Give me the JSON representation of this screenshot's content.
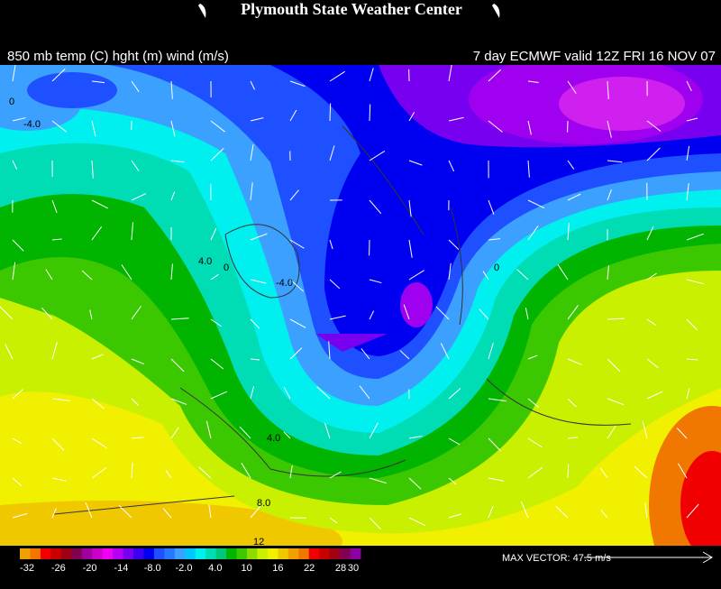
{
  "header": {
    "title": "Plymouth State Weather Center"
  },
  "subtitle_left": "850 mb temp (C) hght (m) wind (m/s)",
  "subtitle_right": "7 day ECMWF valid 12Z FRI 16 NOV 07",
  "contour_labels": [
    "0",
    "-4.0",
    "4.0",
    "0",
    "-4.0",
    "0",
    "4.0",
    "8.0",
    "12"
  ],
  "colorbar": {
    "colors": [
      "#f0a000",
      "#f07800",
      "#f00000",
      "#c80000",
      "#a00014",
      "#820050",
      "#a000a0",
      "#c800c8",
      "#f000f0",
      "#b400f0",
      "#7800f0",
      "#3c00f0",
      "#0000f0",
      "#1e50ff",
      "#2878ff",
      "#3ca0ff",
      "#00c8ff",
      "#00f0f0",
      "#00dcb4",
      "#00c878",
      "#00b400",
      "#3cc800",
      "#8cdc00",
      "#c8f000",
      "#f0f000",
      "#f0c800",
      "#f0a000",
      "#f07800",
      "#f00000",
      "#c80000",
      "#a00014",
      "#820050",
      "#8c00a0"
    ],
    "labels": [
      "-32",
      "-26",
      "-20",
      "-14",
      "-8.0",
      "-2.0",
      "4.0",
      "10",
      "16",
      "22",
      "28",
      "30"
    ]
  },
  "max_vector": "MAX VECTOR:  47.5 m/s"
}
